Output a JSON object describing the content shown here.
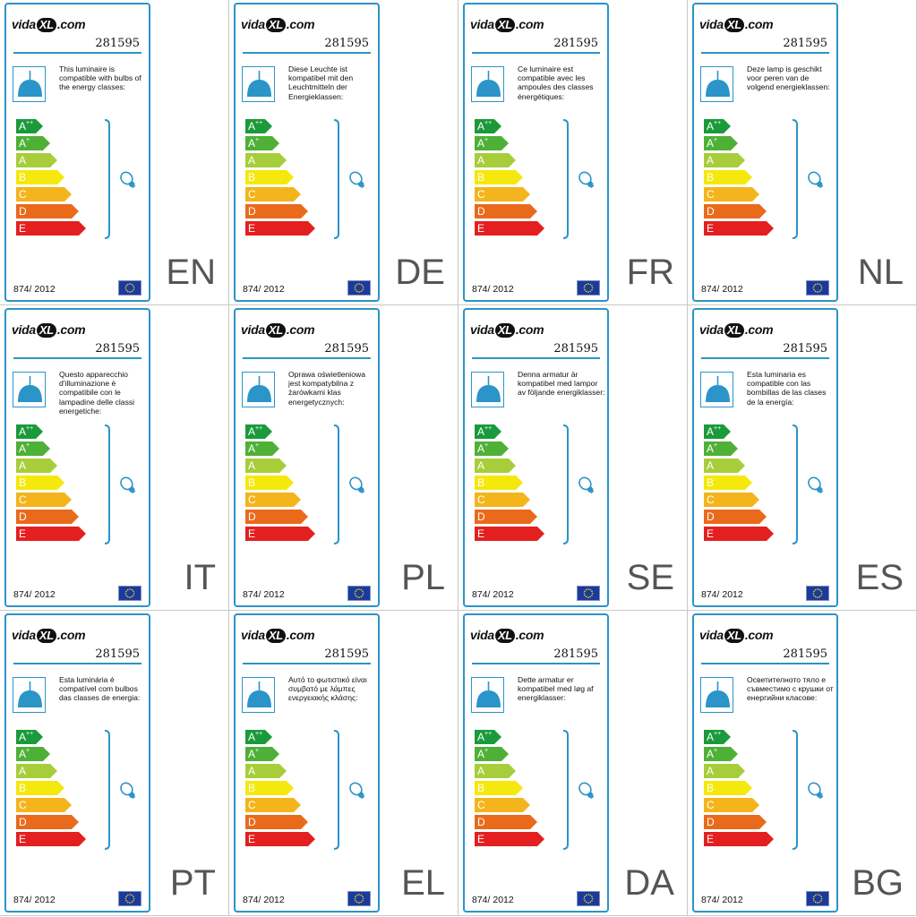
{
  "brand": {
    "name_left": "vida",
    "name_mark": "XL",
    "name_right": ".com"
  },
  "article_number": "281595",
  "regulation": "874/ 2012",
  "energy_classes": [
    {
      "letter": "A",
      "suffix": "++",
      "color": "#1a9a3a"
    },
    {
      "letter": "A",
      "suffix": "+",
      "color": "#4fb037"
    },
    {
      "letter": "A",
      "suffix": "",
      "color": "#a8cd3b"
    },
    {
      "letter": "B",
      "suffix": "",
      "color": "#f5e80c"
    },
    {
      "letter": "C",
      "suffix": "",
      "color": "#f4b41c"
    },
    {
      "letter": "D",
      "suffix": "",
      "color": "#ea6a1b"
    },
    {
      "letter": "E",
      "suffix": "",
      "color": "#e3201f"
    }
  ],
  "colors": {
    "accent": "#2b94c8",
    "eu_blue": "#1a3a9c",
    "eu_star": "#f7d417"
  },
  "icons": {
    "lamp": "pendant-lamp-icon",
    "bulb": "lightbulb-icon",
    "eu": "eu-flag-icon"
  },
  "labels": [
    {
      "code": "EN",
      "text": "This luminaire is compatible with bulbs of the energy classes:"
    },
    {
      "code": "DE",
      "text": "Diese Leuchte ist kompatibel mit den Leuchtmitteln der Energieklassen:"
    },
    {
      "code": "FR",
      "text": "Ce luminaire est compatible avec les ampoules des classes énergétiques:"
    },
    {
      "code": "NL",
      "text": "Deze lamp is geschikt voor peren van de volgend energieklassen:"
    },
    {
      "code": "IT",
      "text": "Questo apparecchio d'illuminazione è compatibile con le lampadine delle classi energetiche:"
    },
    {
      "code": "PL",
      "text": "Oprawa oświetleniowa jest kompatybilna z żarówkami klas energetycznych:"
    },
    {
      "code": "SE",
      "text": "Denna armatur är kompatibel med lampor av följande energiklasser:"
    },
    {
      "code": "ES",
      "text": "Esta luminaria es compatible con las bombillas de las clases de la energía:"
    },
    {
      "code": "PT",
      "text": "Esta luminária é compatível com bulbos das classes de energia:"
    },
    {
      "code": "EL",
      "text": "Αυτό το φωτιστικό είναι συμβατό με λάμπες ενεργειακής κλάσης:"
    },
    {
      "code": "DA",
      "text": "Dette armatur er kompatibel med løg af energiklasser:"
    },
    {
      "code": "BG",
      "text": "Осветителното тяло е съвместимо с крушки от енергийни класове:"
    }
  ]
}
